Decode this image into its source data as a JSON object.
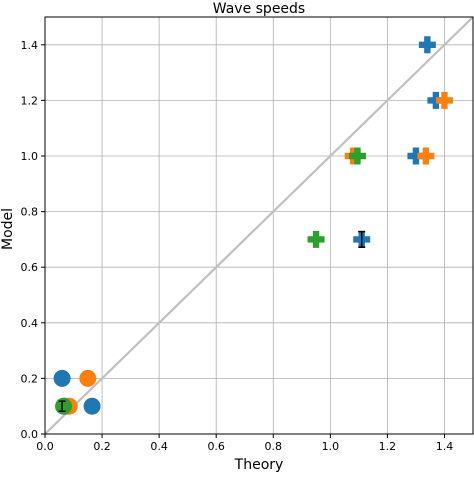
{
  "chart_data": {
    "type": "scatter",
    "title": "Wave speeds",
    "xlabel": "Theory",
    "ylabel": "Model",
    "xlim": [
      0.0,
      1.5
    ],
    "ylim": [
      0.0,
      1.5
    ],
    "xticks": [
      "0.0",
      "0.2",
      "0.4",
      "0.6",
      "0.8",
      "1.0",
      "1.2",
      "1.4"
    ],
    "yticks": [
      "0.0",
      "0.2",
      "0.4",
      "0.6",
      "0.8",
      "1.0",
      "1.2",
      "1.4"
    ],
    "xtick_values": [
      0.0,
      0.2,
      0.4,
      0.6,
      0.8,
      1.0,
      1.2,
      1.4
    ],
    "ytick_values": [
      0.0,
      0.2,
      0.4,
      0.6,
      0.8,
      1.0,
      1.2,
      1.4
    ],
    "grid": true,
    "reference_line": {
      "from": [
        0.0,
        0.0
      ],
      "to": [
        1.5,
        1.5
      ],
      "color": "#bfbfbf"
    },
    "series": [
      {
        "color": "#1f77b4",
        "marker": "circle",
        "points": [
          {
            "x": 0.06,
            "y": 0.2
          },
          {
            "x": 0.07,
            "y": 0.1
          },
          {
            "x": 0.165,
            "y": 0.1
          }
        ]
      },
      {
        "color": "#ff7f0e",
        "marker": "circle",
        "points": [
          {
            "x": 0.15,
            "y": 0.2
          },
          {
            "x": 0.085,
            "y": 0.1
          }
        ]
      },
      {
        "color": "#2ca02c",
        "marker": "circle",
        "points": [
          {
            "x": 0.065,
            "y": 0.1
          }
        ]
      },
      {
        "color": "#1f77b4",
        "marker": "plus",
        "points": [
          {
            "x": 1.34,
            "y": 1.4
          },
          {
            "x": 1.37,
            "y": 1.2
          },
          {
            "x": 1.3,
            "y": 1.0
          },
          {
            "x": 1.11,
            "y": 0.7
          }
        ]
      },
      {
        "color": "#ff7f0e",
        "marker": "plus",
        "points": [
          {
            "x": 1.4,
            "y": 1.2
          },
          {
            "x": 1.335,
            "y": 1.0
          },
          {
            "x": 1.08,
            "y": 1.0
          }
        ]
      },
      {
        "color": "#2ca02c",
        "marker": "plus",
        "points": [
          {
            "x": 1.095,
            "y": 1.0
          },
          {
            "x": 0.95,
            "y": 0.7
          }
        ]
      }
    ],
    "error_bars": [
      {
        "x": 0.06,
        "y": 0.1,
        "yerr": 0.018,
        "color": "#000000"
      },
      {
        "x": 1.11,
        "y": 0.7,
        "yerr": 0.028,
        "color": "#000000"
      }
    ]
  }
}
